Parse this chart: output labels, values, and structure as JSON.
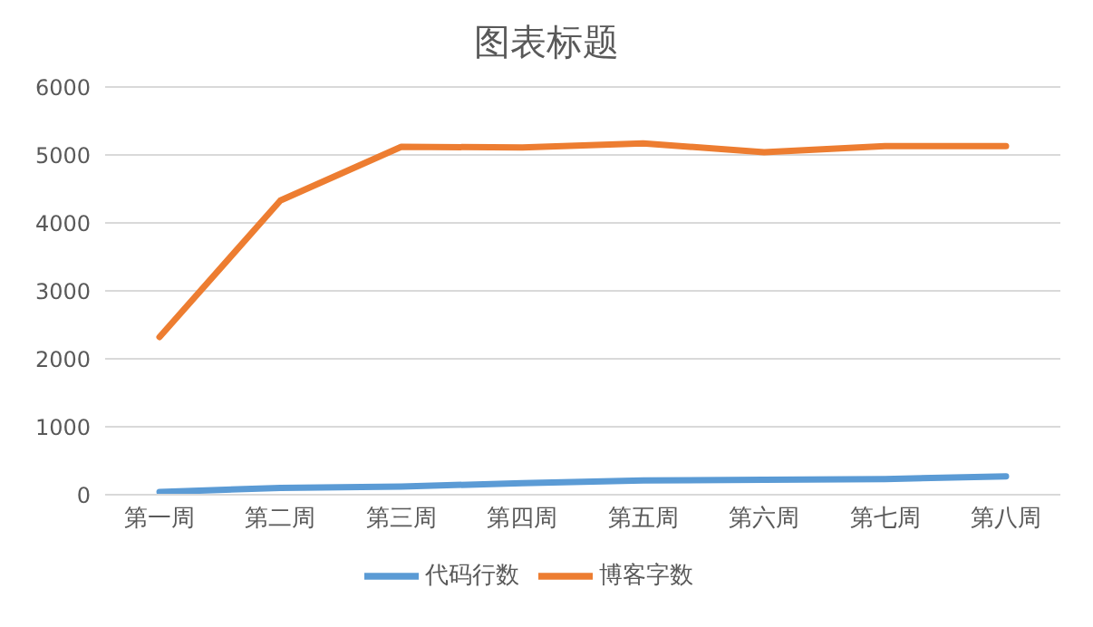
{
  "chart_data": {
    "type": "line",
    "title": "图表标题",
    "categories": [
      "第一周",
      "第二周",
      "第三周",
      "第四周",
      "第五周",
      "第六周",
      "第七周",
      "第八周"
    ],
    "series": [
      {
        "name": "代码行数",
        "color": "#5b9bd5",
        "values": [
          40,
          100,
          120,
          170,
          210,
          220,
          230,
          270
        ]
      },
      {
        "name": "博客字数",
        "color": "#ed7d31",
        "values": [
          2320,
          4330,
          5120,
          5110,
          5170,
          5040,
          5130,
          5130
        ]
      }
    ],
    "ylim": [
      0,
      6000
    ],
    "yticks": [
      0,
      1000,
      2000,
      3000,
      4000,
      5000,
      6000
    ],
    "grid": "y",
    "legend": "bottom",
    "marker": "none",
    "line_style": "solid"
  }
}
